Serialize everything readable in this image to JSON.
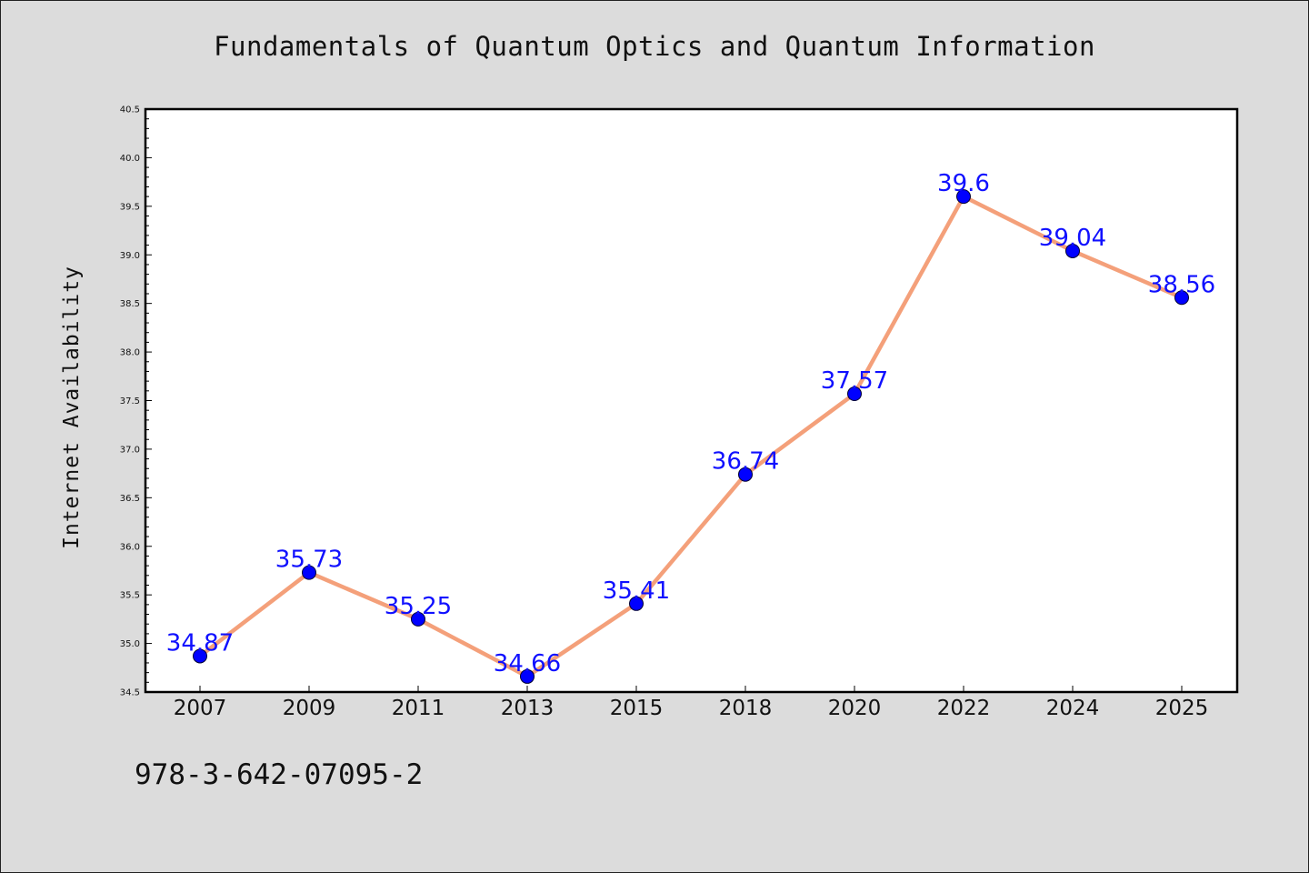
{
  "chart_data": {
    "type": "line",
    "title": "Fundamentals of Quantum Optics and Quantum Information",
    "xlabel": "",
    "ylabel": "Internet Availability",
    "categories": [
      "2007",
      "2009",
      "2011",
      "2013",
      "2015",
      "2018",
      "2020",
      "2022",
      "2024",
      "2025"
    ],
    "series": [
      {
        "values": [
          34.87,
          35.73,
          35.25,
          34.66,
          35.41,
          36.74,
          37.57,
          39.6,
          39.04,
          38.56
        ],
        "labels": [
          "34.87",
          "35.73",
          "35.25",
          "34.66",
          "35.41",
          "36.74",
          "37.57",
          "39.6",
          "39.04",
          "38.56"
        ],
        "line_color": "#f4a07a",
        "marker_color": "#0000ff"
      }
    ],
    "ylim": [
      34.5,
      40.5
    ],
    "yticks": [
      "34.5",
      "35.0",
      "35.5",
      "36.0",
      "36.5",
      "37.0",
      "37.5",
      "38.0",
      "38.5",
      "39.0",
      "39.5",
      "40.0",
      "40.5"
    ],
    "grid": false,
    "legend": "none"
  },
  "footer": {
    "text": "978-3-642-07095-2"
  }
}
